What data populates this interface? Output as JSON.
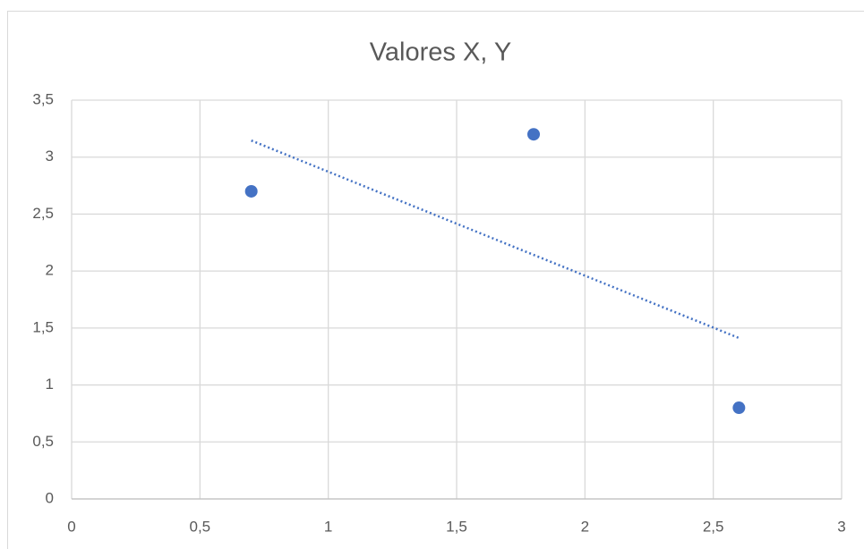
{
  "chart_data": {
    "type": "scatter",
    "title": "Valores X, Y",
    "series": [
      {
        "color": "#4472c4",
        "x": [
          0.7,
          1.8,
          2.6
        ],
        "values": [
          2.7,
          3.2,
          0.8
        ]
      }
    ],
    "trendline": "linear",
    "grid": true,
    "xlim": [
      0,
      3
    ],
    "xticks": [
      0,
      {
        "value": 0.5,
        "label": "0,5"
      },
      1,
      {
        "value": 1.5,
        "label": "1,5"
      },
      2,
      {
        "value": 2.5,
        "label": "2,5"
      },
      3
    ],
    "ylim": [
      0,
      3.5
    ],
    "yticks": [
      0,
      {
        "value": 0.5,
        "label": "0,5"
      },
      1,
      {
        "value": 1.5,
        "label": "1,5"
      },
      2,
      {
        "value": 2.5,
        "label": "2,5"
      },
      3,
      {
        "value": 3.5,
        "label": "3,5"
      }
    ]
  }
}
